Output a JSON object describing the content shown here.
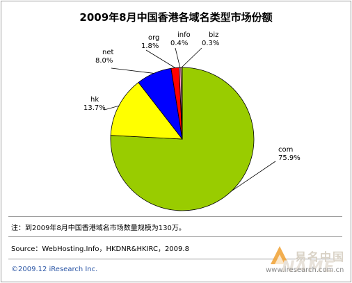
{
  "chart_data": {
    "type": "pie",
    "title": "2009年8月中国香港各域名类型市场份额",
    "slices": [
      {
        "label": "com",
        "value": 75.9,
        "display": "75.9%",
        "color": "#99cc00"
      },
      {
        "label": "hk",
        "value": 13.7,
        "display": "13.7%",
        "color": "#ffff00"
      },
      {
        "label": "net",
        "value": 8.0,
        "display": "8.0%",
        "color": "#0000ff"
      },
      {
        "label": "org",
        "value": 1.8,
        "display": "1.8%",
        "color": "#ff0000"
      },
      {
        "label": "info",
        "value": 0.4,
        "display": "0.4%",
        "color": "#ff99cc"
      },
      {
        "label": "biz",
        "value": 0.3,
        "display": "0.3%",
        "color": "#ffcc99"
      }
    ]
  },
  "note": "注：到2009年8月中国香港域名市场数量规模为130万。",
  "source": "Source：WebHosting.Info，HKDNR&HKIRC，2009.8",
  "copyright": "©2009.12 iResearch Inc.",
  "watermark": {
    "text_cn": "易名中国",
    "text_en": "NAME",
    "url": "www.iresearch.com.cn"
  }
}
